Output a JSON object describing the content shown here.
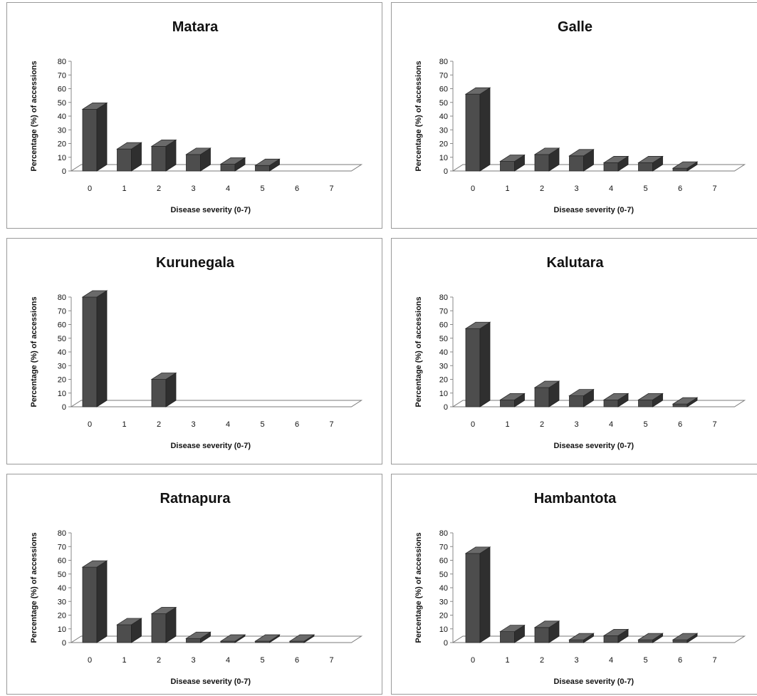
{
  "chart_data": [
    {
      "type": "bar",
      "title": "Matara",
      "xlabel": "Disease severity (0-7)",
      "ylabel": "Percentage (%) of accessions",
      "categories": [
        "0",
        "1",
        "2",
        "3",
        "4",
        "5",
        "6",
        "7"
      ],
      "values": [
        45,
        16,
        18,
        12,
        5,
        4,
        0,
        0
      ],
      "yticks": [
        "0",
        "10",
        "20",
        "30",
        "40",
        "50",
        "60",
        "70",
        "80"
      ],
      "ylim": [
        0,
        80
      ],
      "grid": false,
      "style": "3d-column",
      "bar_color": "#4d4d4d"
    },
    {
      "type": "bar",
      "title": "Galle",
      "xlabel": "Disease severity (0-7)",
      "ylabel": "Percentage (%) of accessions",
      "categories": [
        "0",
        "1",
        "2",
        "3",
        "4",
        "5",
        "6",
        "7"
      ],
      "values": [
        56,
        7,
        12,
        11,
        6,
        6,
        2,
        0
      ],
      "yticks": [
        "0",
        "10",
        "20",
        "30",
        "40",
        "50",
        "60",
        "70",
        "80"
      ],
      "ylim": [
        0,
        80
      ],
      "grid": false,
      "style": "3d-column",
      "bar_color": "#4d4d4d"
    },
    {
      "type": "bar",
      "title": "Kurunegala",
      "xlabel": "Disease severity (0-7)",
      "ylabel": "Percentage (%) of accessions",
      "categories": [
        "0",
        "1",
        "2",
        "3",
        "4",
        "5",
        "6",
        "7"
      ],
      "values": [
        80,
        0,
        20,
        0,
        0,
        0,
        0,
        0
      ],
      "yticks": [
        "0",
        "10",
        "20",
        "30",
        "40",
        "50",
        "60",
        "70",
        "80"
      ],
      "ylim": [
        0,
        80
      ],
      "grid": false,
      "style": "3d-column",
      "bar_color": "#4d4d4d"
    },
    {
      "type": "bar",
      "title": "Kalutara",
      "xlabel": "Disease severity (0-7)",
      "ylabel": "Percentage (%) of accessions",
      "categories": [
        "0",
        "1",
        "2",
        "3",
        "4",
        "5",
        "6",
        "7"
      ],
      "values": [
        57,
        5,
        14,
        8,
        5,
        5,
        2,
        0
      ],
      "yticks": [
        "0",
        "10",
        "20",
        "30",
        "40",
        "50",
        "60",
        "70",
        "80"
      ],
      "ylim": [
        0,
        80
      ],
      "grid": false,
      "style": "3d-column",
      "bar_color": "#4d4d4d"
    },
    {
      "type": "bar",
      "title": "Ratnapura",
      "xlabel": "Disease severity (0-7)",
      "ylabel": "Percentage (%) of accessions",
      "categories": [
        "0",
        "1",
        "2",
        "3",
        "4",
        "5",
        "6",
        "7"
      ],
      "values": [
        55,
        13,
        21,
        3,
        1,
        1,
        1,
        0
      ],
      "yticks": [
        "0",
        "10",
        "20",
        "30",
        "40",
        "50",
        "60",
        "70",
        "80"
      ],
      "ylim": [
        0,
        80
      ],
      "grid": false,
      "style": "3d-column",
      "bar_color": "#4d4d4d"
    },
    {
      "type": "bar",
      "title": "Hambantota",
      "xlabel": "Disease severity (0-7)",
      "ylabel": "Percentage (%) of accessions",
      "categories": [
        "0",
        "1",
        "2",
        "3",
        "4",
        "5",
        "6",
        "7"
      ],
      "values": [
        65,
        8,
        11,
        2,
        5,
        2,
        2,
        0
      ],
      "yticks": [
        "0",
        "10",
        "20",
        "30",
        "40",
        "50",
        "60",
        "70",
        "80"
      ],
      "ylim": [
        0,
        80
      ],
      "grid": false,
      "style": "3d-column",
      "bar_color": "#4d4d4d"
    }
  ]
}
